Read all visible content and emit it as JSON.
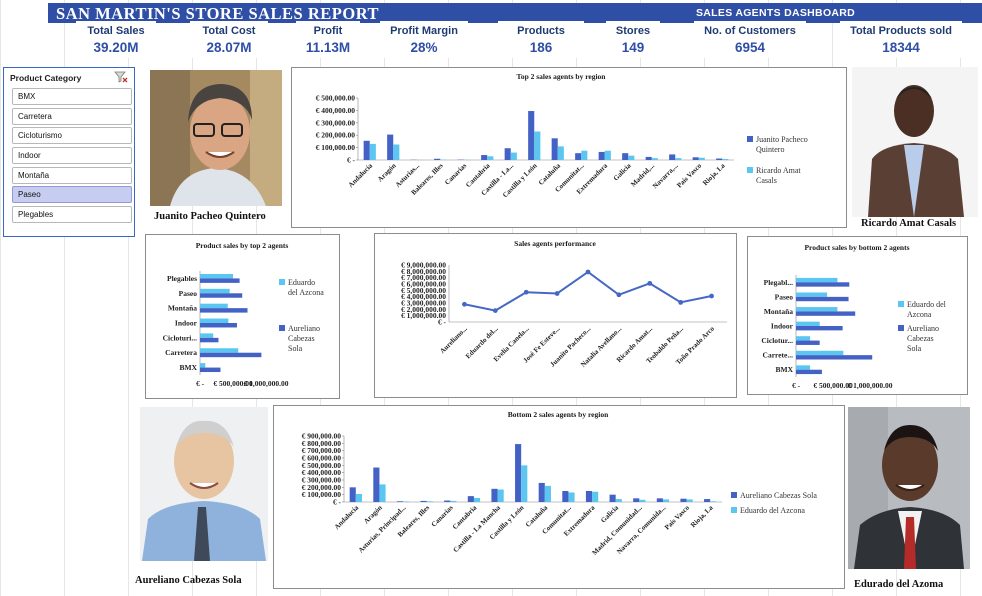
{
  "report_title": "SAN  MARTIN'S STORE SALES REPORT",
  "dashboard_title": "SALES AGENTS  DASHBOARD",
  "colors": {
    "banner": "#2f4ea6",
    "series_dark": "#4462c6",
    "series_light": "#5bc6f0",
    "line": "#4568c4"
  },
  "kpis": [
    {
      "label": "Total Sales",
      "value": "39.20M"
    },
    {
      "label": "Total Cost",
      "value": "28.07M"
    },
    {
      "label": "Profit",
      "value": "11.13M"
    },
    {
      "label": "Profit Margin",
      "value": "28%"
    },
    {
      "label": "Products",
      "value": "186"
    },
    {
      "label": "Stores",
      "value": "149"
    },
    {
      "label": "No. of Customers",
      "value": "6954"
    },
    {
      "label": "Total Products sold",
      "value": "18344"
    }
  ],
  "slicer": {
    "title": "Product Category",
    "clear_icon": "clear-filter-icon",
    "items": [
      "BMX",
      "Carretera",
      "Cicloturismo",
      "Indoor",
      "Montaña",
      "Paseo",
      "Plegables"
    ],
    "selected": "Paseo"
  },
  "people": {
    "top_left": "Juanito Pacheo Quintero",
    "top_right": "Ricardo Amat Casals",
    "bottom_left": "Aureliano Cabezas Sola",
    "bottom_right": "Edurado del Azoma"
  },
  "chart_data": [
    {
      "type": "bar",
      "title": "Top 2 sales agents by region",
      "categories": [
        "Andalucía",
        "Aragón",
        "Asturias...",
        "Baleares, Illes",
        "Canarias",
        "Cantabria",
        "Castilla - La...",
        "Castilla y León",
        "Cataluña",
        "Comunitat...",
        "Extremadura",
        "Galicia",
        "Madrid,...",
        "Navarra,...",
        "País Vasco",
        "Rioja, La"
      ],
      "series": [
        {
          "name": "Juanito Pacheco Quintero",
          "values": [
            155000,
            205000,
            2000,
            10000,
            3000,
            40000,
            95000,
            395000,
            175000,
            55000,
            65000,
            55000,
            25000,
            45000,
            22000,
            12000
          ]
        },
        {
          "name": "Ricardo Amat Casals",
          "values": [
            130000,
            125000,
            1000,
            3000,
            2000,
            30000,
            60000,
            230000,
            110000,
            75000,
            75000,
            35000,
            15000,
            15000,
            18000,
            8000
          ]
        }
      ],
      "yticks": [
        "€ -",
        "€ 100,000.00",
        "€ 200,000.00",
        "€ 300,000.00",
        "€ 400,000.00",
        "€ 500,000.00"
      ],
      "ylim": [
        0,
        500000
      ]
    },
    {
      "type": "bar",
      "title": "Product sales by top 2 agents",
      "orientation": "horizontal",
      "categories": [
        "Plegables",
        "Paseo",
        "Montaña",
        "Indoor",
        "Cicloturi...",
        "Carretera",
        "BMX"
      ],
      "series": [
        {
          "name": "Eduardo del Azcona",
          "values": [
            500000,
            450000,
            420000,
            430000,
            200000,
            580000,
            80000
          ]
        },
        {
          "name": "Aureliano Cabezas Sola",
          "values": [
            600000,
            640000,
            720000,
            560000,
            280000,
            930000,
            310000
          ]
        }
      ],
      "xticks": [
        "€ -",
        "€ 500,000.00",
        "€ 1,000,000.00"
      ],
      "xlim": [
        0,
        1000000
      ]
    },
    {
      "type": "line",
      "title": "Sales agents performance",
      "categories": [
        "Aureliano...",
        "Eduardo del...",
        "Evelia Canela...",
        "José Fe Esteve...",
        "Juanito Pacheco...",
        "Natalia Avellano...",
        "Ricardo Amat...",
        "Teobaldo Peña...",
        "Toño Prado Arco"
      ],
      "series": [
        {
          "name": "Sales",
          "values": [
            2800000,
            1800000,
            4700000,
            4500000,
            7900000,
            4300000,
            6100000,
            3100000,
            4100000
          ]
        }
      ],
      "yticks": [
        "€ -",
        "€ 1,000,000.00",
        "€ 2,000,000.00",
        "€ 3,000,000.00",
        "€ 4,000,000.00",
        "€ 5,000,000.00",
        "€ 6,000,000.00",
        "€ 7,000,000.00",
        "€ 8,000,000.00",
        "€ 9,000,000.00"
      ],
      "ylim": [
        0,
        9000000
      ]
    },
    {
      "type": "bar",
      "title": "Product sales by bottom 2 agents",
      "orientation": "horizontal",
      "categories": [
        "Plegabl...",
        "Paseo",
        "Montaña",
        "Indoor",
        "Ciclotur...",
        "Carrete...",
        "BMX"
      ],
      "series": [
        {
          "name": "Eduardo del Azcona",
          "values": [
            560000,
            420000,
            560000,
            320000,
            190000,
            640000,
            190000
          ]
        },
        {
          "name": "Aureliano Cabezas Sola",
          "values": [
            720000,
            710000,
            800000,
            630000,
            320000,
            1030000,
            350000
          ]
        }
      ],
      "xticks": [
        "€ -",
        "€ 500,000.00",
        "€ 1,000,000.00"
      ],
      "xlim": [
        0,
        1000000
      ]
    },
    {
      "type": "bar",
      "title": "Bottom 2 sales agents by region",
      "categories": [
        "Andalucía",
        "Aragón",
        "Asturias, Principad...",
        "Baleares, Illes",
        "Canarias",
        "Cantabria",
        "Castilla - La Mancha",
        "Castilla y León",
        "Cataluña",
        "Comunitat...",
        "Extremadura",
        "Galicia",
        "Madrid, Comunidad...",
        "Navarra, Comunida...",
        "País Vasco",
        "Rioja, La"
      ],
      "series": [
        {
          "name": "Aureliano Cabezas Sola",
          "values": [
            200000,
            470000,
            10000,
            15000,
            20000,
            80000,
            180000,
            790000,
            260000,
            150000,
            150000,
            100000,
            50000,
            50000,
            45000,
            40000
          ]
        },
        {
          "name": "Eduardo del Azcona",
          "values": [
            110000,
            240000,
            8000,
            10000,
            15000,
            55000,
            170000,
            500000,
            220000,
            130000,
            140000,
            40000,
            30000,
            35000,
            35000,
            10000
          ]
        }
      ],
      "yticks": [
        "€ -",
        "€ 100,000.00",
        "€ 200,000.00",
        "€ 300,000.00",
        "€ 400,000.00",
        "€ 500,000.00",
        "€ 600,000.00",
        "€ 700,000.00",
        "€ 800,000.00",
        "€ 900,000.00"
      ],
      "ylim": [
        0,
        900000
      ]
    }
  ]
}
